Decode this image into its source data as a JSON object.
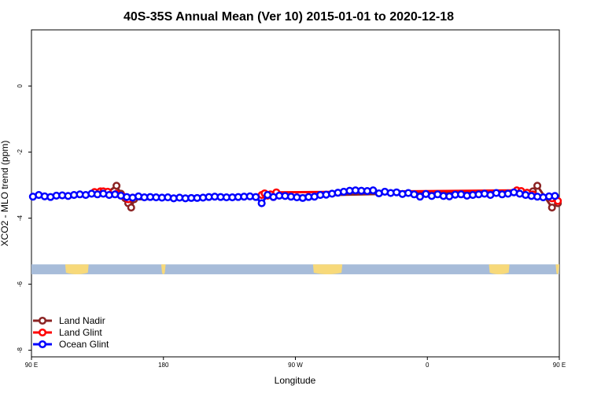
{
  "chart_data": {
    "type": "line",
    "title": "40S-35S Annual Mean (Ver 10)   2015-01-01 to 2020-12-18",
    "xlabel": "Longitude",
    "ylabel": "XCO2 - MLO trend (ppm)",
    "xlim": [
      90,
      450
    ],
    "ylim": [
      -8.2,
      1.7
    ],
    "x_ticks": [
      {
        "value": 90,
        "label": "90 E"
      },
      {
        "value": 180,
        "label": "180"
      },
      {
        "value": 270,
        "label": "90 W"
      },
      {
        "value": 360,
        "label": "0"
      },
      {
        "value": 450,
        "label": "90 E"
      },
      {
        "value": 540,
        "label": "180"
      }
    ],
    "y_ticks": [
      {
        "value": 0,
        "label": "0"
      },
      {
        "value": -2,
        "label": "-2"
      },
      {
        "value": -4,
        "label": "-4"
      },
      {
        "value": -6,
        "label": "-6"
      },
      {
        "value": -8,
        "label": "-8"
      }
    ],
    "legend_position": "bottom-left",
    "map_strip": {
      "y_top": -5.4,
      "y_bottom": -5.7,
      "ocean_color": "#a7bcd9",
      "land_color": "#f7d97a"
    },
    "series": [
      {
        "name": "Land Nadir",
        "color": "#8b2323",
        "x": [
          133,
          137,
          139,
          142,
          148,
          151,
          154,
          156,
          158,
          160,
          421,
          424,
          428,
          432,
          435,
          445,
          449
        ],
        "y": [
          -3.23,
          -3.22,
          -3.2,
          -3.21,
          -3.02,
          -3.26,
          -3.4,
          -3.55,
          -3.68,
          -3.43,
          -3.18,
          -3.2,
          -3.25,
          -3.19,
          -3.02,
          -3.68,
          -3.55
        ]
      },
      {
        "name": "Land Glint",
        "color": "#ff0000",
        "x": [
          133,
          137,
          139,
          142,
          148,
          152,
          156,
          159,
          247,
          249,
          251,
          253,
          255,
          257,
          421,
          424,
          428,
          432,
          445,
          449
        ],
        "y": [
          -3.21,
          -3.19,
          -3.19,
          -3.2,
          -3.26,
          -3.33,
          -3.43,
          -3.38,
          -3.3,
          -3.25,
          -3.32,
          -3.28,
          -3.36,
          -3.22,
          -3.16,
          -3.18,
          -3.23,
          -3.28,
          -3.4,
          -3.48
        ]
      },
      {
        "name": "Ocean Glint",
        "color": "#0000ff",
        "x": [
          91,
          95,
          99,
          103,
          107,
          111,
          115,
          119,
          123,
          127,
          131,
          135,
          139,
          143,
          147,
          151,
          155,
          159,
          163,
          167,
          171,
          175,
          179,
          183,
          187,
          191,
          195,
          199,
          203,
          207,
          211,
          215,
          219,
          223,
          227,
          231,
          235,
          239,
          243,
          247,
          251,
          255,
          259,
          263,
          267,
          271,
          275,
          279,
          283,
          287,
          291,
          295,
          299,
          303,
          307,
          311,
          315,
          319,
          323,
          327,
          331,
          335,
          339,
          343,
          347,
          351,
          355,
          359,
          363,
          367,
          371,
          375,
          379,
          383,
          387,
          391,
          395,
          399,
          403,
          407,
          411,
          415,
          419,
          423,
          427,
          431,
          435,
          439,
          443,
          447
        ],
        "y": [
          -3.35,
          -3.3,
          -3.34,
          -3.36,
          -3.32,
          -3.31,
          -3.33,
          -3.3,
          -3.28,
          -3.3,
          -3.26,
          -3.28,
          -3.26,
          -3.3,
          -3.28,
          -3.32,
          -3.36,
          -3.38,
          -3.34,
          -3.37,
          -3.36,
          -3.37,
          -3.38,
          -3.37,
          -3.4,
          -3.38,
          -3.4,
          -3.39,
          -3.39,
          -3.38,
          -3.36,
          -3.35,
          -3.36,
          -3.37,
          -3.37,
          -3.36,
          -3.35,
          -3.34,
          -3.36,
          -3.55,
          -3.3,
          -3.36,
          -3.32,
          -3.33,
          -3.35,
          -3.37,
          -3.39,
          -3.36,
          -3.35,
          -3.3,
          -3.29,
          -3.26,
          -3.23,
          -3.2,
          -3.17,
          -3.16,
          -3.17,
          -3.18,
          -3.16,
          -3.25,
          -3.2,
          -3.24,
          -3.22,
          -3.27,
          -3.24,
          -3.28,
          -3.35,
          -3.27,
          -3.33,
          -3.28,
          -3.33,
          -3.34,
          -3.29,
          -3.28,
          -3.32,
          -3.3,
          -3.28,
          -3.26,
          -3.3,
          -3.24,
          -3.28,
          -3.26,
          -3.22,
          -3.26,
          -3.3,
          -3.33,
          -3.35,
          -3.37,
          -3.34,
          -3.33
        ]
      }
    ]
  }
}
